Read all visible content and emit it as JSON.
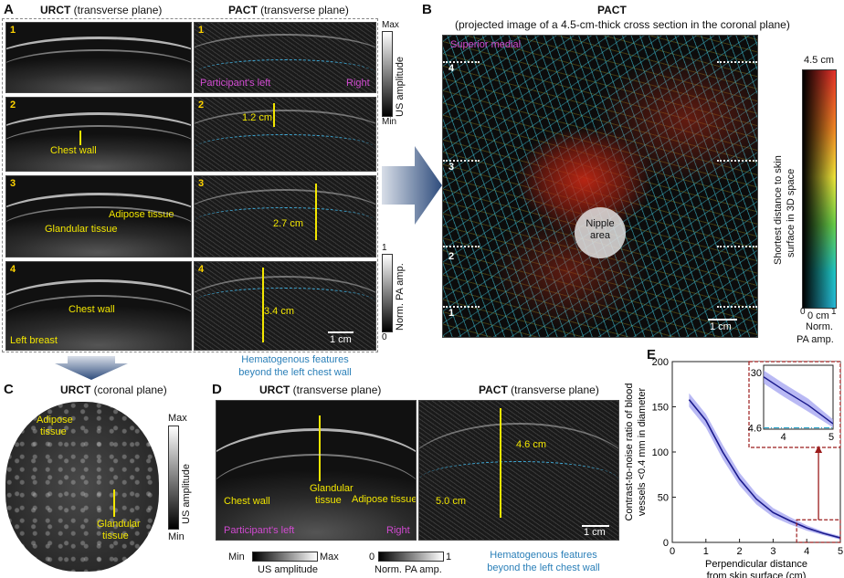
{
  "panel_labels": {
    "a": "A",
    "b": "B",
    "c": "C",
    "d": "D",
    "e": "E"
  },
  "panel_a": {
    "urct_title": "URCT",
    "urct_sub": " (transverse plane)",
    "pact_title": "PACT",
    "pact_sub": " (transverse plane)",
    "row_numbers": [
      "1",
      "2",
      "3",
      "4"
    ],
    "participant_left": "Participant's left",
    "right": "Right",
    "chest_wall": "Chest wall",
    "adipose": "Adipose tissue",
    "glandular": "Glandular tissue",
    "chest_wall_2": "Chest wall",
    "left_breast": "Left breast",
    "dist_2": "1.2 cm",
    "dist_3": "2.7 cm",
    "dist_4": "3.4 cm",
    "scale": "1 cm",
    "us_cbar_max": "Max",
    "us_cbar_min": "Min",
    "us_cbar_label": "US amplitude",
    "pa_cbar_max": "1",
    "pa_cbar_min": "0",
    "pa_cbar_label": "Norm. PA amp.",
    "hemato_1": "Hematogenous features",
    "hemato_2": "beyond the left chest wall"
  },
  "panel_b": {
    "title": "PACT",
    "subtitle": "(projected image of a 4.5-cm-thick cross section in the coronal plane)",
    "superior_medial": "Superior medial",
    "depth_numbers": [
      "4",
      "3",
      "2",
      "1"
    ],
    "nipple_line1": "Nipple",
    "nipple_line2": "area",
    "scale": "1 cm",
    "cbar_top": "4.5 cm",
    "cbar_bottom": "0 cm",
    "cbar_x0": "0",
    "cbar_x1": "1",
    "cbar_vert_label1": "Shortest distance to skin",
    "cbar_vert_label2": "surface in 3D space",
    "cbar_xlabel1": "Norm.",
    "cbar_xlabel2": "PA amp."
  },
  "panel_c": {
    "title": "URCT",
    "sub": " (coronal plane)",
    "adipose1": "Adipose",
    "adipose2": "tissue",
    "glandular1": "Glandular",
    "glandular2": "tissue",
    "cbar_max": "Max",
    "cbar_min": "Min",
    "cbar_label": "US amplitude"
  },
  "panel_d": {
    "urct_title": "URCT",
    "urct_sub": " (transverse plane)",
    "pact_title": "PACT",
    "pact_sub": " (transverse plane)",
    "chest_wall": "Chest wall",
    "glandular1": "Glandular",
    "glandular2": "tissue",
    "adipose": "Adipose tissue",
    "participant_left": "Participant's left",
    "right": "Right",
    "dist_a": "4.6 cm",
    "dist_b": "5.0 cm",
    "scale": "1 cm",
    "us_min": "Min",
    "us_max": "Max",
    "us_label": "US amplitude",
    "pa_min": "0",
    "pa_max": "1",
    "pa_label": "Norm. PA amp.",
    "hemato_1": "Hematogenous features",
    "hemato_2": "beyond the left chest wall"
  },
  "chart_data": {
    "type": "line",
    "x": [
      0.5,
      1.0,
      1.5,
      2.0,
      2.5,
      3.0,
      3.5,
      4.0,
      4.5,
      5.0
    ],
    "series": [
      {
        "values": [
          158,
          135,
          100,
          70,
          48,
          33,
          24,
          16,
          10,
          5
        ]
      }
    ],
    "band_upper": [
      165,
      142,
      108,
      77,
      54,
      38,
      28,
      19,
      12,
      7
    ],
    "band_lower": [
      150,
      127,
      92,
      63,
      42,
      28,
      20,
      13,
      8,
      3
    ],
    "xlabel": "Perpendicular distance from skin surface (cm)",
    "ylabel": "Contrast-to-noise ratio of blood vessels <0.4 mm in diameter",
    "xlim": [
      0,
      5
    ],
    "ylim": [
      0,
      200
    ],
    "xticks": [
      "0",
      "1",
      "2",
      "3",
      "4",
      "5"
    ],
    "yticks": [
      "0",
      "50",
      "100",
      "150",
      "200"
    ],
    "inset_yticks": [
      "30",
      "4.6"
    ],
    "inset_xticks": [
      "4",
      "5"
    ],
    "inset_reference": 4.6,
    "colors": {
      "line": "#1a1a8c",
      "band": "#9b9bf0",
      "inset_box": "#9b1c1c",
      "ref_line": "#29a3c9"
    }
  }
}
